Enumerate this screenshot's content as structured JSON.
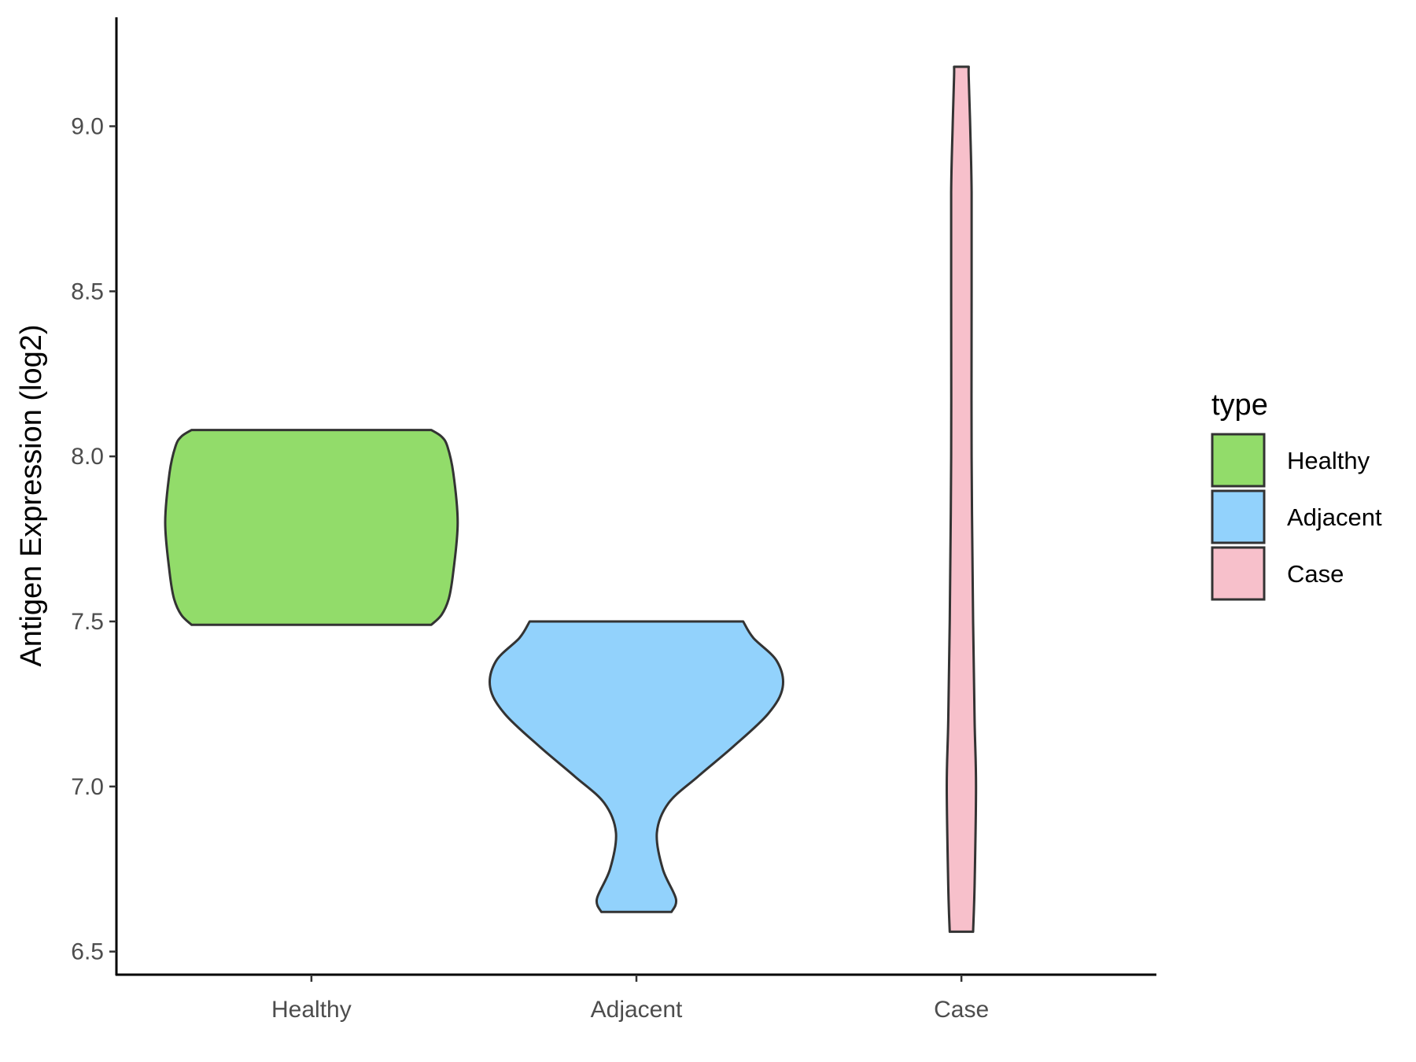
{
  "chart_data": {
    "type": "violin",
    "title": "",
    "xlabel": "",
    "ylabel": "Antigen Expression (log2)",
    "ylim": [
      6.43,
      9.33
    ],
    "yticks": [
      "6.5",
      "7.0",
      "7.5",
      "8.0",
      "8.5",
      "9.0"
    ],
    "grid": false,
    "legend": {
      "title": "type",
      "position": "right",
      "entries": [
        "Healthy",
        "Adjacent",
        "Case"
      ]
    },
    "categories": [
      "Healthy",
      "Adjacent",
      "Case"
    ],
    "series": [
      {
        "name": "Healthy",
        "color": "#92dc6a",
        "min": 7.49,
        "max": 8.08,
        "density_profile": [
          [
            7.49,
            0.82
          ],
          [
            7.52,
            0.89
          ],
          [
            7.57,
            0.94
          ],
          [
            7.65,
            0.97
          ],
          [
            7.8,
            1.0
          ],
          [
            7.95,
            0.97
          ],
          [
            8.03,
            0.93
          ],
          [
            8.06,
            0.89
          ],
          [
            8.08,
            0.82
          ]
        ]
      },
      {
        "name": "Adjacent",
        "color": "#92d2fc",
        "min": 6.62,
        "max": 7.5,
        "density_profile": [
          [
            6.62,
            0.24
          ],
          [
            6.66,
            0.27
          ],
          [
            6.75,
            0.18
          ],
          [
            6.86,
            0.14
          ],
          [
            6.95,
            0.22
          ],
          [
            7.03,
            0.42
          ],
          [
            7.12,
            0.66
          ],
          [
            7.22,
            0.9
          ],
          [
            7.3,
            1.0
          ],
          [
            7.38,
            0.96
          ],
          [
            7.45,
            0.8
          ],
          [
            7.5,
            0.73
          ]
        ]
      },
      {
        "name": "Case",
        "color": "#f7c0cb",
        "min": 6.56,
        "max": 9.18,
        "density_profile": [
          [
            6.56,
            0.08
          ],
          [
            6.7,
            0.09
          ],
          [
            7.0,
            0.1
          ],
          [
            7.2,
            0.09
          ],
          [
            7.5,
            0.08
          ],
          [
            8.0,
            0.07
          ],
          [
            8.5,
            0.07
          ],
          [
            8.8,
            0.07
          ],
          [
            9.0,
            0.06
          ],
          [
            9.15,
            0.05
          ],
          [
            9.18,
            0.05
          ]
        ]
      }
    ]
  }
}
